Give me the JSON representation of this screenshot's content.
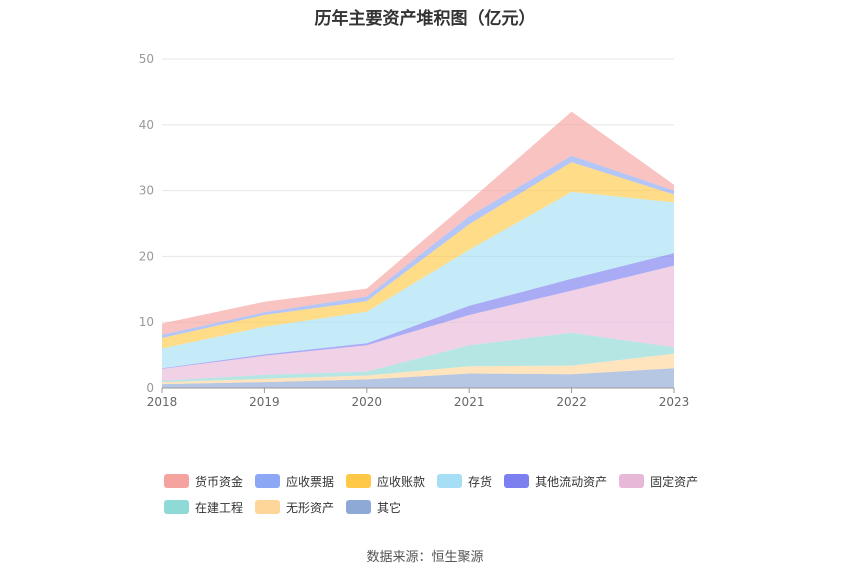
{
  "chart_data": {
    "type": "area",
    "title": "历年主要资产堆积图（亿元）",
    "x": [
      "2018",
      "2019",
      "2020",
      "2021",
      "2022",
      "2023"
    ],
    "ylim": [
      0,
      50
    ],
    "yticks": [
      "0",
      "10",
      "20",
      "30",
      "40",
      "50"
    ],
    "grid": true,
    "legend_position": "bottom",
    "series": [
      {
        "name": "其它",
        "color": "#8fa9d6",
        "values": [
          0.6,
          0.9,
          1.3,
          2.2,
          2.1,
          3.0
        ]
      },
      {
        "name": "无形资产",
        "color": "#ffd699",
        "values": [
          0.3,
          0.5,
          0.6,
          1.1,
          1.3,
          2.2
        ]
      },
      {
        "name": "在建工程",
        "color": "#8fd9d6",
        "values": [
          0.2,
          0.6,
          0.6,
          3.2,
          5.0,
          1.0
        ]
      },
      {
        "name": "固定资产",
        "color": "#e8b8d8",
        "values": [
          1.8,
          2.9,
          4.0,
          4.6,
          6.4,
          12.4
        ]
      },
      {
        "name": "其他流动资产",
        "color": "#7b7ff0",
        "values": [
          0.1,
          0.2,
          0.3,
          1.4,
          1.8,
          1.9
        ]
      },
      {
        "name": "存货",
        "color": "#a6def5",
        "values": [
          3.0,
          4.2,
          4.8,
          8.5,
          13.2,
          7.7
        ]
      },
      {
        "name": "应收账款",
        "color": "#ffc947",
        "values": [
          1.6,
          1.8,
          1.6,
          3.9,
          4.5,
          1.2
        ]
      },
      {
        "name": "应收票据",
        "color": "#8ca8f5",
        "values": [
          0.5,
          0.4,
          0.7,
          1.2,
          1.0,
          0.6
        ]
      },
      {
        "name": "货币资金",
        "color": "#f5a39e",
        "values": [
          1.7,
          1.6,
          1.2,
          2.3,
          6.7,
          0.9
        ]
      }
    ],
    "legend_order": [
      "货币资金",
      "应收票据",
      "应收账款",
      "存货",
      "其他流动资产",
      "固定资产",
      "在建工程",
      "无形资产",
      "其它"
    ]
  },
  "source": "数据来源：恒生聚源"
}
